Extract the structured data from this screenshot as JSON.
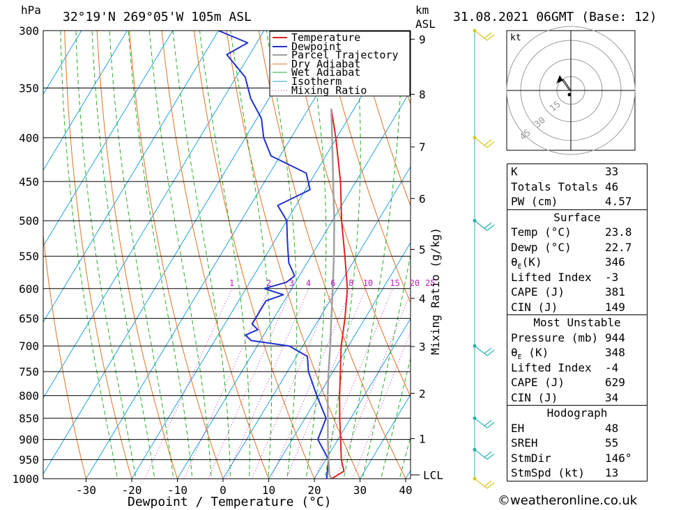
{
  "header": {
    "pressure_unit": "hPa",
    "location": "32°19'N  269°05'W  105m  ASL",
    "height_unit_top": "km",
    "height_unit_bottom": "ASL",
    "datetime": "31.08.2021  06GMT  (Base: 12)"
  },
  "chart_data": {
    "type": "skew-t",
    "xlabel": "Dewpoint / Temperature (°C)",
    "ylabel_left": "hPa",
    "ylabel_right_mixing": "Mixing Ratio (g/kg)",
    "pressure_levels": [
      300,
      350,
      400,
      450,
      500,
      550,
      600,
      650,
      700,
      750,
      800,
      850,
      900,
      950,
      1000
    ],
    "pressure_tick_labels": [
      "300",
      "350",
      "400",
      "450",
      "500",
      "550",
      "600",
      "650",
      "700",
      "750",
      "800",
      "850",
      "900",
      "950",
      "1000"
    ],
    "temperature_ticks": [
      -30,
      -20,
      -10,
      0,
      10,
      20,
      30,
      40
    ],
    "temperature_tick_labels": [
      "-30",
      "-20",
      "-10",
      "0",
      "10",
      "20",
      "30",
      "40"
    ],
    "height_ticks_km": [
      {
        "km": 1,
        "p": 898
      },
      {
        "km": 2,
        "p": 795
      },
      {
        "km": 3,
        "p": 701
      },
      {
        "km": 4,
        "p": 616
      },
      {
        "km": 5,
        "p": 540
      },
      {
        "km": 6,
        "p": 471
      },
      {
        "km": 7,
        "p": 410
      },
      {
        "km": 8,
        "p": 356
      },
      {
        "km": 9,
        "p": 307
      }
    ],
    "height_tick_labels": [
      "1",
      "2",
      "3",
      "4",
      "5",
      "6",
      "7",
      "8",
      "9"
    ],
    "lcl_pressure": 990,
    "lcl_label": "LCL",
    "mixing_ratio_values": [
      1,
      2,
      3,
      4,
      6,
      8,
      10,
      15,
      20,
      25
    ],
    "mixing_ratio_labels": [
      "1",
      "2",
      "3",
      "4",
      "6",
      "8",
      "10",
      "15",
      "20",
      "25"
    ],
    "legend": [
      "Temperature",
      "Dewpoint",
      "Parcel Trajectory",
      "Dry Adiabat",
      "Wet Adiabat",
      "Isotherm",
      "Mixing Ratio"
    ],
    "series": [
      {
        "name": "Temperature",
        "color": "#e02020",
        "points": [
          [
            1000,
            23.8
          ],
          [
            980,
            25.5
          ],
          [
            950,
            23.4
          ],
          [
            900,
            20.6
          ],
          [
            850,
            17.6
          ],
          [
            800,
            14.6
          ],
          [
            750,
            11.6
          ],
          [
            700,
            8.4
          ],
          [
            650,
            5.6
          ],
          [
            600,
            2.2
          ],
          [
            550,
            -2.6
          ],
          [
            500,
            -8.0
          ],
          [
            450,
            -13.4
          ],
          [
            400,
            -20.2
          ],
          [
            370,
            -25.0
          ]
        ]
      },
      {
        "name": "Dewpoint",
        "color": "#2030d0",
        "points": [
          [
            1000,
            22.7
          ],
          [
            950,
            20.6
          ],
          [
            900,
            15.6
          ],
          [
            850,
            14.6
          ],
          [
            800,
            9.6
          ],
          [
            750,
            4.6
          ],
          [
            720,
            2.4
          ],
          [
            700,
            -3.0
          ],
          [
            690,
            -12.0
          ],
          [
            680,
            -14.0
          ],
          [
            670,
            -12.0
          ],
          [
            660,
            -14.0
          ],
          [
            640,
            -14.0
          ],
          [
            620,
            -14.0
          ],
          [
            610,
            -11.0
          ],
          [
            600,
            -16.0
          ],
          [
            590,
            -12.0
          ],
          [
            580,
            -11.0
          ],
          [
            560,
            -14.0
          ],
          [
            540,
            -16.0
          ],
          [
            520,
            -18.0
          ],
          [
            500,
            -20.0
          ],
          [
            480,
            -24.0
          ],
          [
            460,
            -19.0
          ],
          [
            440,
            -22.0
          ],
          [
            420,
            -32.0
          ],
          [
            400,
            -36.0
          ],
          [
            380,
            -39.0
          ],
          [
            360,
            -44.0
          ],
          [
            340,
            -48.0
          ],
          [
            320,
            -55.0
          ],
          [
            310,
            -52.0
          ],
          [
            300,
            -60.0
          ]
        ]
      },
      {
        "name": "Parcel Trajectory",
        "color": "#a0a0a0",
        "points": [
          [
            1000,
            23.8
          ],
          [
            990,
            22.8
          ],
          [
            950,
            20.6
          ],
          [
            900,
            17.8
          ],
          [
            850,
            15.0
          ],
          [
            800,
            12.0
          ],
          [
            750,
            9.0
          ],
          [
            700,
            6.0
          ],
          [
            650,
            2.6
          ],
          [
            600,
            -1.0
          ],
          [
            550,
            -5.0
          ],
          [
            500,
            -9.6
          ],
          [
            450,
            -15.0
          ],
          [
            400,
            -21.0
          ],
          [
            370,
            -25.0
          ]
        ]
      }
    ]
  },
  "hodograph": {
    "unit_label": "kt",
    "ring_labels": [
      "15",
      "30",
      "45"
    ],
    "wind_u": [
      0,
      2,
      4,
      6,
      8
    ],
    "wind_v": [
      0,
      3,
      6,
      5,
      4
    ]
  },
  "indices": {
    "k_label": "K",
    "k_value": "33",
    "tt_label": "Totals Totals",
    "tt_value": "46",
    "pw_label": "PW (cm)",
    "pw_value": "4.57"
  },
  "surface": {
    "title": "Surface",
    "temp_label": "Temp (°C)",
    "temp_value": "23.8",
    "dewp_label": "Dewp (°C)",
    "dewp_value": "22.7",
    "theta_label": "θ",
    "theta_sub": "E",
    "theta_unit": "(K)",
    "theta_value": "346",
    "li_label": "Lifted Index",
    "li_value": "-3",
    "cape_label": "CAPE (J)",
    "cape_value": "381",
    "cin_label": "CIN (J)",
    "cin_value": "149"
  },
  "most_unstable": {
    "title": "Most Unstable",
    "pressure_label": "Pressure (mb)",
    "pressure_value": "944",
    "theta_label": "θ",
    "theta_sub": "E",
    "theta_unit": " (K)",
    "theta_value": "348",
    "li_label": "Lifted Index",
    "li_value": "-4",
    "cape_label": "CAPE (J)",
    "cape_value": "629",
    "cin_label": "CIN (J)",
    "cin_value": "34"
  },
  "hodograph_stats": {
    "title": "Hodograph",
    "eh_label": "EH",
    "eh_value": "48",
    "sreh_label": "SREH",
    "sreh_value": "55",
    "stmdir_label": "StmDir",
    "stmdir_value": "146°",
    "stmspd_label": "StmSpd (kt)",
    "stmspd_value": "13"
  },
  "credit": "©weatheronline.co.uk",
  "colors": {
    "temperature": "#e02020",
    "dewpoint": "#2030d0",
    "parcel": "#a0a0a0",
    "dry_adiabat": "#e07020",
    "wet_adiabat": "#20b020",
    "isotherm": "#20a0e0",
    "mixing_ratio": "#c020c0",
    "wind_barb": "#20b0b0",
    "wind_barb_top": "#d8c820"
  }
}
